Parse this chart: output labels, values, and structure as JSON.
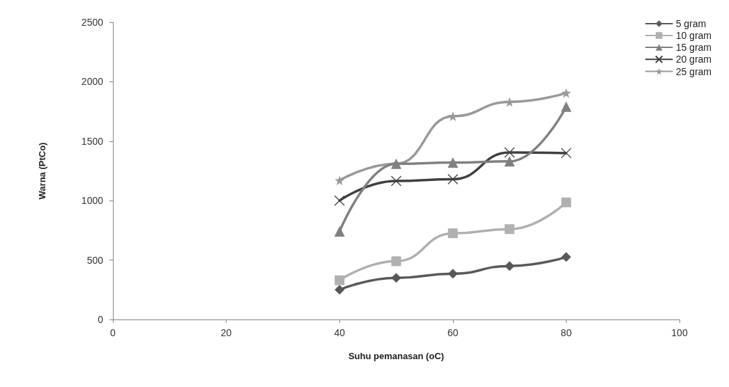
{
  "chart_data": {
    "type": "line",
    "xlabel": "Suhu pemanasan (oC)",
    "ylabel": "Warna (PtCo)",
    "x": [
      40,
      50,
      60,
      70,
      80
    ],
    "xlim": [
      0,
      100
    ],
    "xticks": [
      0,
      20,
      40,
      60,
      80,
      100
    ],
    "ylim": [
      0,
      2500
    ],
    "yticks": [
      0,
      500,
      1000,
      1500,
      2000,
      2500
    ],
    "grid": false,
    "legend": "top right",
    "series": [
      {
        "name": "5 gram",
        "color": "#595959",
        "marker": "diamond",
        "values": [
          250,
          350,
          385,
          450,
          525
        ]
      },
      {
        "name": "10 gram",
        "color": "#b0b0b0",
        "marker": "square",
        "values": [
          330,
          490,
          725,
          760,
          985
        ]
      },
      {
        "name": "15 gram",
        "color": "#808080",
        "marker": "triangle",
        "values": [
          740,
          1310,
          1320,
          1330,
          1790
        ]
      },
      {
        "name": "20 gram",
        "color": "#404040",
        "marker": "cross",
        "values": [
          1000,
          1165,
          1180,
          1405,
          1400
        ]
      },
      {
        "name": "25 gram",
        "color": "#999999",
        "marker": "star",
        "values": [
          1170,
          1310,
          1710,
          1830,
          1905
        ]
      }
    ]
  }
}
